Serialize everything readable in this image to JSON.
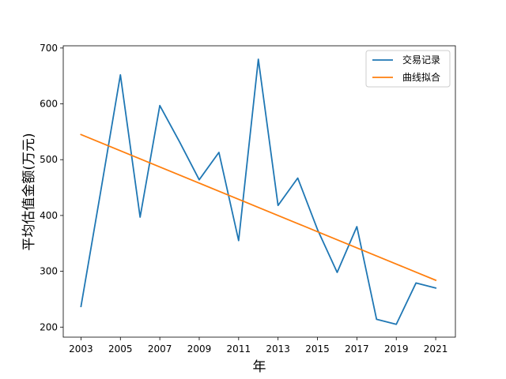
{
  "chart_data": {
    "type": "line",
    "title": "",
    "xlabel": "年",
    "ylabel": "平均估值金额(万元)",
    "x": [
      2003,
      2004,
      2005,
      2006,
      2007,
      2008,
      2009,
      2010,
      2011,
      2012,
      2013,
      2014,
      2015,
      2016,
      2017,
      2018,
      2019,
      2020,
      2021
    ],
    "xticks": [
      2003,
      2005,
      2007,
      2009,
      2011,
      2013,
      2015,
      2017,
      2019,
      2021
    ],
    "yticks": [
      200,
      300,
      400,
      500,
      600,
      700
    ],
    "xlim": [
      2002.1,
      2022.0
    ],
    "ylim": [
      182,
      704
    ],
    "grid": false,
    "legend_position": "top-right",
    "series": [
      {
        "name": "交易记录",
        "color": "#1f77b4",
        "values": [
          237,
          443,
          652,
          397,
          597,
          532,
          464,
          513,
          355,
          680,
          418,
          467,
          375,
          298,
          380,
          214,
          205,
          279,
          270
        ]
      },
      {
        "name": "曲线拟合",
        "color": "#ff7f0e",
        "values": [
          545,
          530.5,
          516,
          501.5,
          487,
          472.5,
          458,
          443.5,
          429,
          414.5,
          400,
          385.5,
          371,
          356.5,
          342,
          327.5,
          313,
          298.5,
          284
        ]
      }
    ]
  }
}
